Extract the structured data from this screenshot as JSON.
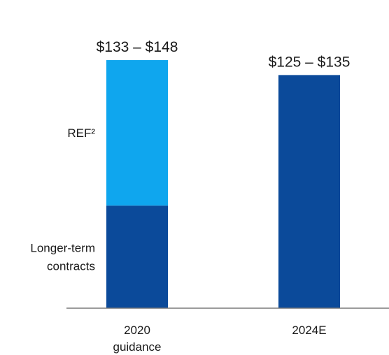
{
  "chart_data": {
    "type": "bar",
    "stacked": true,
    "categories": [
      "2020\nguidance",
      "2024E"
    ],
    "series": [
      {
        "name": "Longer-term contracts",
        "color": "#0b4a9a",
        "values": [
          55,
          125
        ]
      },
      {
        "name": "REF²",
        "color": "#0fa6ee",
        "values": [
          78,
          0
        ]
      }
    ],
    "data_labels": [
      "$133 – $148",
      "$125 – $135"
    ],
    "ylim": [
      0,
      148
    ],
    "grid": false,
    "legend_placement": "left",
    "xlabel": "",
    "ylabel": ""
  }
}
